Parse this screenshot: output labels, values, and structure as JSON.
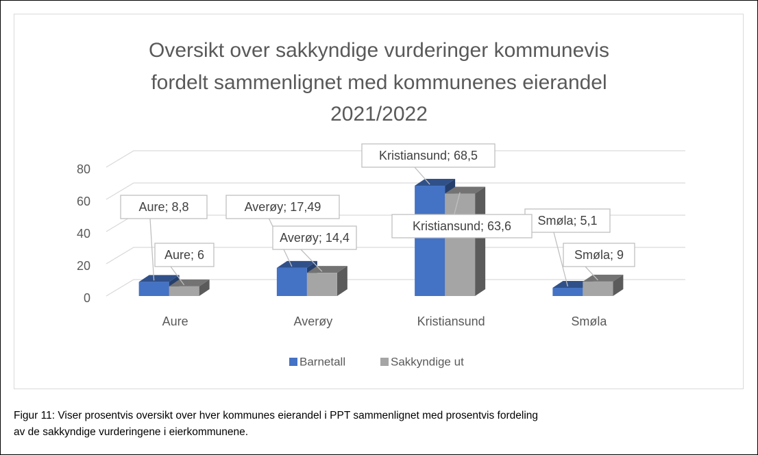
{
  "chart_data": {
    "type": "bar3d",
    "title": [
      "Oversikt over sakkyndige vurderinger kommunevis",
      "fordelt sammenlignet med kommunenes eierandel",
      "2021/2022"
    ],
    "categories": [
      "Aure",
      "Averøy",
      "Kristiansund",
      "Smøla"
    ],
    "series": [
      {
        "name": "Barnetall",
        "color": "#4472c4",
        "values": [
          8.8,
          17.49,
          68.5,
          5.1
        ],
        "value_labels": [
          "Aure; 8,8",
          "Averøy; 17,49",
          "Kristiansund; 68,5",
          "Smøla; 5,1"
        ]
      },
      {
        "name": "Sakkyndige ut",
        "color": "#a5a5a5",
        "values": [
          6,
          14.4,
          63.6,
          9
        ],
        "value_labels": [
          "Aure; 6",
          "Averøy; 14,4",
          "Kristiansund; 63,6",
          "Smøla; 9"
        ]
      }
    ],
    "ylim": [
      0,
      80
    ],
    "yticks": [
      0,
      20,
      40,
      60,
      80
    ],
    "grid": true,
    "legend": "bottom"
  },
  "caption": [
    "Figur 11: Viser prosentvis oversikt over hver kommunes eierandel i PPT sammenlignet med prosentvis fordeling",
    "av de sakkyndige vurderingene i eierkommunene."
  ]
}
